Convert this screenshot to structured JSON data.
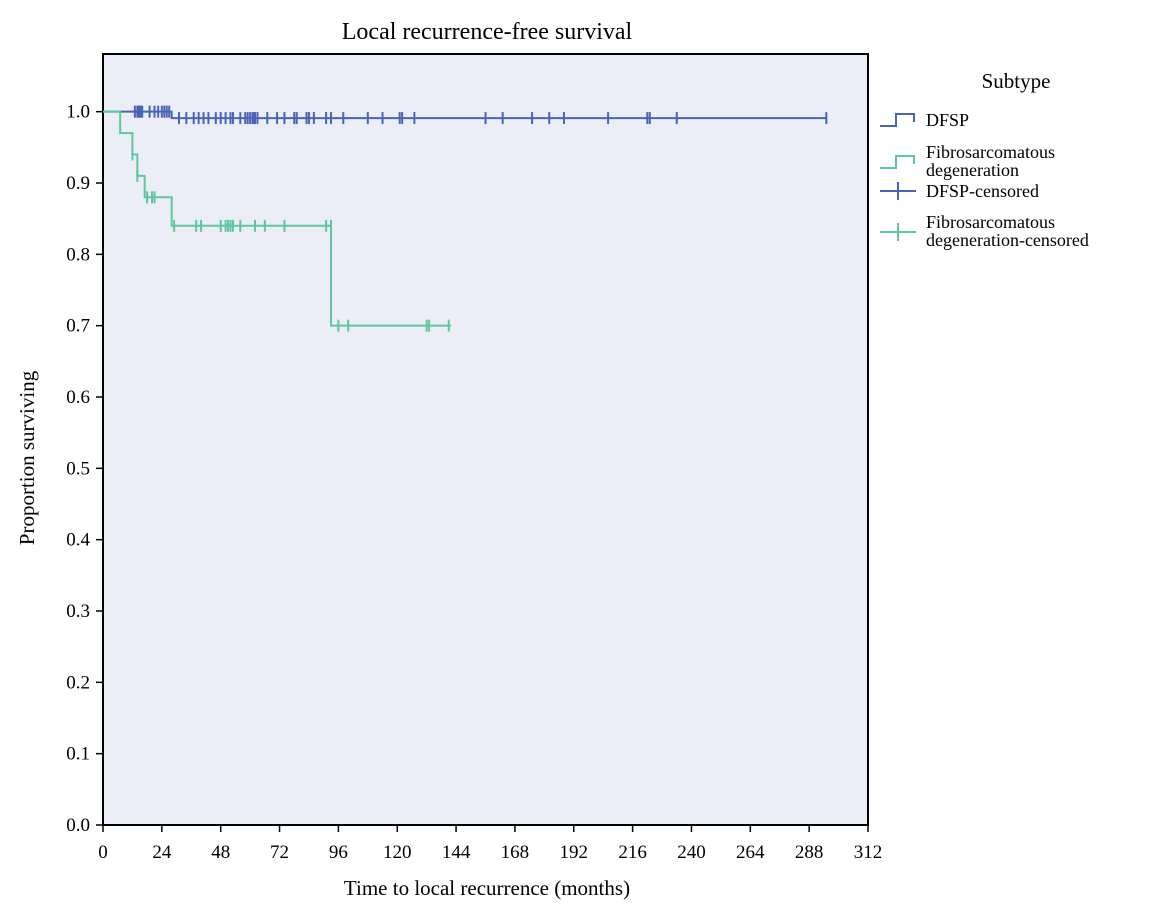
{
  "chart_data": {
    "type": "line",
    "subtype": "kaplan-meier survival",
    "title": "Local recurrence-free survival",
    "xlabel": "Time to local recurrence (months)",
    "ylabel": "Proportion surviving",
    "xlim": [
      0,
      312
    ],
    "ylim": [
      0,
      1.05
    ],
    "xticks": [
      0,
      24,
      48,
      72,
      96,
      120,
      144,
      168,
      192,
      216,
      240,
      264,
      288,
      312
    ],
    "yticks": [
      0.0,
      0.1,
      0.2,
      0.3,
      0.4,
      0.5,
      0.6,
      0.7,
      0.8,
      0.9,
      1.0
    ],
    "xtick_labels": [
      "0",
      "24",
      "48",
      "72",
      "96",
      "120",
      "144",
      "168",
      "192",
      "216",
      "240",
      "264",
      "288",
      "312"
    ],
    "ytick_labels": [
      "0.0",
      "0.1",
      "0.2",
      "0.3",
      "0.4",
      "0.5",
      "0.6",
      "0.7",
      "0.8",
      "0.9",
      "1.0"
    ],
    "grid": false,
    "background_color": "#eceef7",
    "legend": {
      "title": "Subtype",
      "position": "right",
      "entries": [
        "DFSP",
        "Fibrosarcomatous degeneration",
        "DFSP-censored",
        "Fibrosarcomatous degeneration-censored"
      ]
    },
    "series": [
      {
        "name": "DFSP",
        "color": "#4a63b5",
        "steps": [
          [
            0,
            1.0
          ],
          [
            28,
            0.991
          ],
          [
            295,
            0.991
          ]
        ],
        "censored": [
          [
            13,
            1.0
          ],
          [
            14,
            1.0
          ],
          [
            14.5,
            1.0
          ],
          [
            15,
            1.0
          ],
          [
            15.5,
            1.0
          ],
          [
            16,
            1.0
          ],
          [
            19,
            1.0
          ],
          [
            21,
            1.0
          ],
          [
            22.5,
            1.0
          ],
          [
            24,
            1.0
          ],
          [
            25,
            1.0
          ],
          [
            26,
            1.0
          ],
          [
            27,
            1.0
          ],
          [
            31,
            0.991
          ],
          [
            34,
            0.991
          ],
          [
            37,
            0.991
          ],
          [
            39,
            0.991
          ],
          [
            41,
            0.991
          ],
          [
            43,
            0.991
          ],
          [
            46,
            0.991
          ],
          [
            48,
            0.991
          ],
          [
            50,
            0.991
          ],
          [
            52,
            0.991
          ],
          [
            53,
            0.991
          ],
          [
            56,
            0.991
          ],
          [
            58,
            0.991
          ],
          [
            59,
            0.991
          ],
          [
            60,
            0.991
          ],
          [
            61,
            0.991
          ],
          [
            61.5,
            0.991
          ],
          [
            62,
            0.991
          ],
          [
            63,
            0.991
          ],
          [
            67,
            0.991
          ],
          [
            71,
            0.991
          ],
          [
            74,
            0.991
          ],
          [
            78,
            0.991
          ],
          [
            79,
            0.991
          ],
          [
            83,
            0.991
          ],
          [
            84,
            0.991
          ],
          [
            86,
            0.991
          ],
          [
            91,
            0.991
          ],
          [
            93,
            0.991
          ],
          [
            98,
            0.991
          ],
          [
            108,
            0.991
          ],
          [
            114,
            0.991
          ],
          [
            121,
            0.991
          ],
          [
            122,
            0.991
          ],
          [
            127,
            0.991
          ],
          [
            156,
            0.991
          ],
          [
            163,
            0.991
          ],
          [
            175,
            0.991
          ],
          [
            182,
            0.991
          ],
          [
            188,
            0.991
          ],
          [
            206,
            0.991
          ],
          [
            222,
            0.991
          ],
          [
            223,
            0.991
          ],
          [
            234,
            0.991
          ],
          [
            295,
            0.991
          ]
        ]
      },
      {
        "name": "Fibrosarcomatous degeneration",
        "color": "#5ec79b",
        "steps": [
          [
            0,
            1.0
          ],
          [
            7,
            0.97
          ],
          [
            12,
            0.94
          ],
          [
            14,
            0.91
          ],
          [
            17,
            0.88
          ],
          [
            28,
            0.84
          ],
          [
            93,
            0.7
          ],
          [
            142,
            0.7
          ]
        ],
        "censored": [
          [
            12,
            0.94
          ],
          [
            14,
            0.91
          ],
          [
            18,
            0.88
          ],
          [
            20,
            0.88
          ],
          [
            21,
            0.88
          ],
          [
            29,
            0.84
          ],
          [
            38,
            0.84
          ],
          [
            40,
            0.84
          ],
          [
            48,
            0.84
          ],
          [
            50,
            0.84
          ],
          [
            51,
            0.84
          ],
          [
            52,
            0.84
          ],
          [
            53,
            0.84
          ],
          [
            56,
            0.84
          ],
          [
            62,
            0.84
          ],
          [
            66,
            0.84
          ],
          [
            74,
            0.84
          ],
          [
            91,
            0.84
          ],
          [
            93,
            0.84
          ],
          [
            96,
            0.7
          ],
          [
            100,
            0.7
          ],
          [
            132,
            0.7
          ],
          [
            133,
            0.7
          ],
          [
            141,
            0.7
          ]
        ]
      }
    ]
  }
}
